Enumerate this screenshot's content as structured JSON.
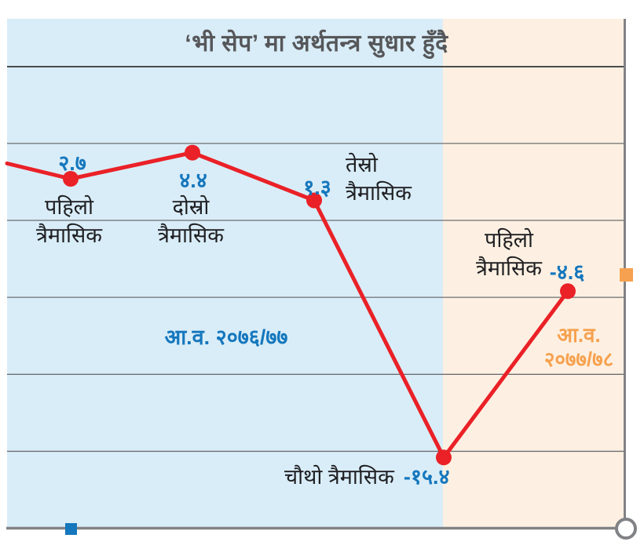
{
  "title": "‘भी सेप’ मा अर्थतन्त्र सुधार हुँदै",
  "colors": {
    "bg_fy1": "#d9edf8",
    "bg_fy2": "#fdf0e2",
    "line": "#ea2127",
    "value_text": "#1577bd",
    "fy2_accent": "#f6a14f",
    "grid": "#6d6e71",
    "axis": "#818285",
    "title_rule": "#4b4b4d",
    "title_text": "#56575a",
    "label_text": "#1e1e21"
  },
  "chart_data": {
    "type": "line",
    "title": "‘भी सेप’ मा अर्थतन्त्र सुधार हुँदै",
    "points": [
      {
        "label": "पहिलो त्रैमासिक",
        "label_lines": [
          "पहिलो",
          "त्रैमासिक"
        ],
        "value": 2.7,
        "value_text": "२.७",
        "fiscal_year": "आ.व. २०७६/७७"
      },
      {
        "label": "दोस्रो त्रैमासिक",
        "label_lines": [
          "दोस्रो",
          "त्रैमासिक"
        ],
        "value": 4.4,
        "value_text": "४.४",
        "fiscal_year": "आ.व. २०७६/७७"
      },
      {
        "label": "तेस्रो त्रैमासिक",
        "label_lines": [
          "तेस्रो",
          "त्रैमासिक"
        ],
        "value": 1.3,
        "value_text": "१.३",
        "fiscal_year": "आ.व. २०७६/७७"
      },
      {
        "label": "चौथो  त्रैमासिक",
        "label_lines": [
          "चौथो",
          "त्रैमासिक"
        ],
        "value": -15.4,
        "value_text": "-१५.४",
        "fiscal_year": "आ.व. २०७६/७७"
      },
      {
        "label": "पहिलो त्रैमासिक",
        "label_lines": [
          "पहिलो",
          "त्रैमासिक"
        ],
        "value": -4.6,
        "value_text": "-४.६",
        "fiscal_year": "आ.व. २०७७/७८"
      }
    ],
    "edge_entry_value": 3.7,
    "regions": [
      {
        "label": "आ.व. २०७६/७७",
        "label_lines": [
          "आ.व. २०७६/७७"
        ],
        "color": "#1577bd",
        "background": "#d9edf8"
      },
      {
        "label": "आ.व. २०७७/७८",
        "label_lines": [
          "आ.व.",
          "२०७७/७८"
        ],
        "color": "#f6a14f",
        "background": "#fdf0e2"
      }
    ],
    "ylim": [
      -20,
      10
    ],
    "grid_step": 5,
    "grid": true,
    "legend_position": "none",
    "axis_tick_labels_shown": false
  }
}
